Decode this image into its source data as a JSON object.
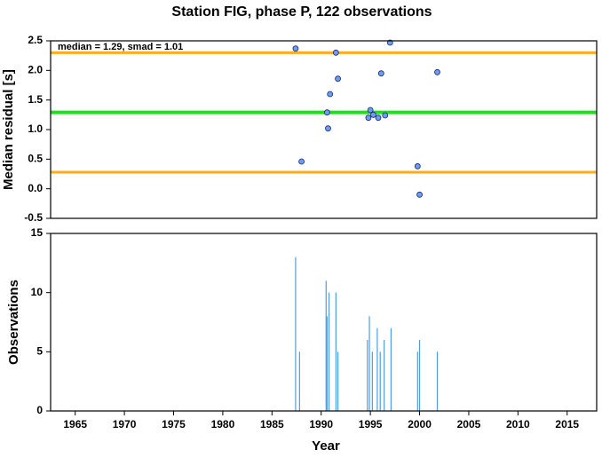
{
  "chart_data": [
    {
      "type": "scatter",
      "title": "Station FIG, phase P, 122 observations",
      "y_label": "Median residual [s]",
      "annotation": "median = 1.29, smad = 1.01",
      "xlim": [
        1962.5,
        2018
      ],
      "ylim": [
        -0.5,
        2.5
      ],
      "yticks": [
        -0.5,
        {
          "value": 0,
          "label": "0.0"
        },
        0.5,
        {
          "value": 1,
          "label": "1.0"
        },
        1.5,
        {
          "value": 2,
          "label": "2.0"
        },
        2.5
      ],
      "hlines": [
        {
          "value": 2.3,
          "color": "#ffad1f"
        },
        {
          "value": 1.29,
          "color": "#1ee01e"
        },
        {
          "value": 0.28,
          "color": "#ffad1f"
        }
      ],
      "color": "#6d9cf2",
      "x": [
        1987.4,
        1988.0,
        1990.6,
        1990.7,
        1990.9,
        1991.5,
        1991.7,
        1994.8,
        1995.0,
        1995.3,
        1995.8,
        1996.1,
        1996.5,
        1997.0,
        1999.8,
        2000.0,
        2001.8
      ],
      "values": [
        2.37,
        0.46,
        1.29,
        1.02,
        1.6,
        2.3,
        1.86,
        1.2,
        1.33,
        1.25,
        1.2,
        1.95,
        1.24,
        2.47,
        0.38,
        -0.1,
        1.97
      ]
    },
    {
      "type": "bar",
      "x_label": "Year",
      "y_label": "Observations",
      "xlim": [
        1962.5,
        2018
      ],
      "ylim": [
        0,
        15
      ],
      "xticks": [
        1965,
        1970,
        1975,
        1980,
        1985,
        1990,
        1995,
        2000,
        2005,
        2010,
        2015
      ],
      "yticks": [
        0,
        5,
        10,
        15
      ],
      "color": "#4f9de0",
      "x": [
        1987.4,
        1987.8,
        1990.5,
        1990.6,
        1990.8,
        1991.5,
        1991.7,
        1994.7,
        1994.9,
        1995.2,
        1995.7,
        1996.0,
        1996.4,
        1997.1,
        1999.8,
        2000.0,
        2001.8
      ],
      "values": [
        13,
        5,
        11,
        8,
        10,
        10,
        5,
        6,
        8,
        5,
        7,
        5,
        6,
        7,
        5,
        6,
        5
      ]
    }
  ]
}
